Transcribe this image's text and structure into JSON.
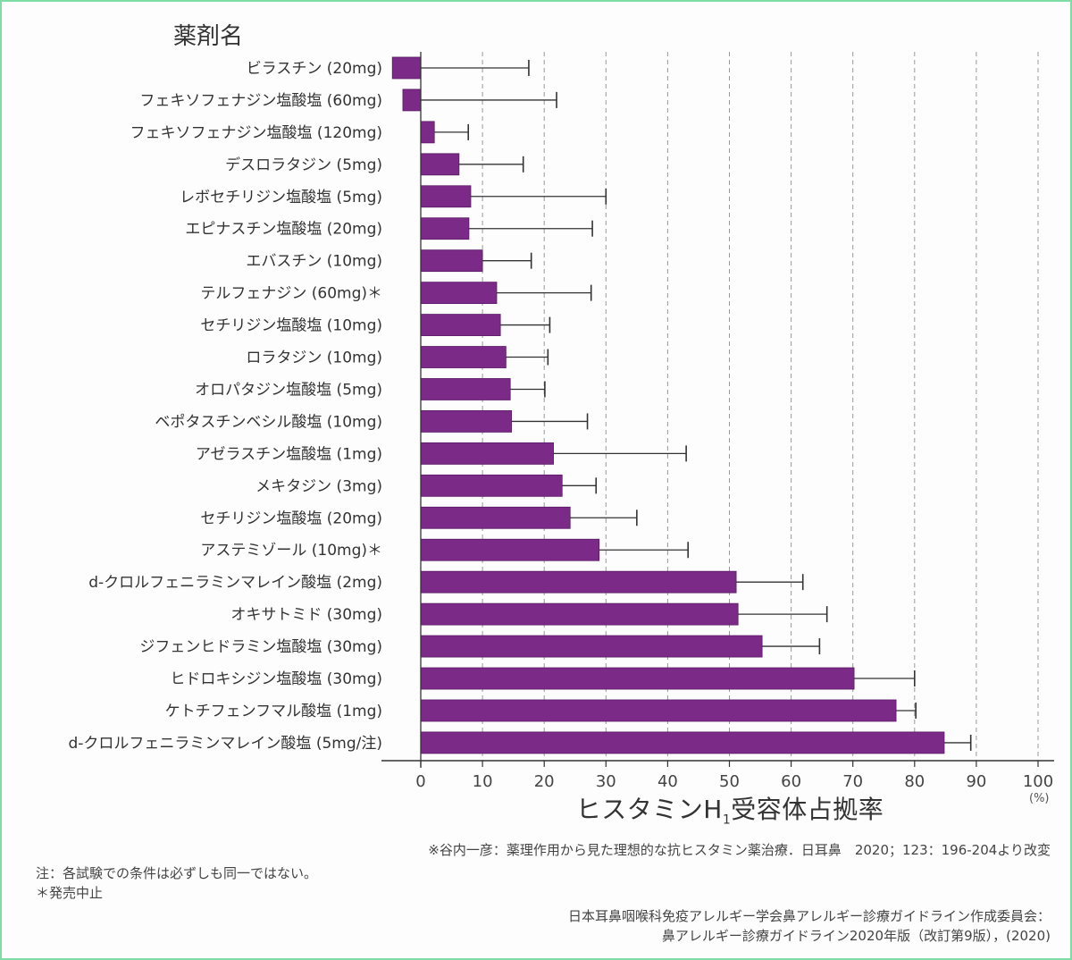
{
  "chart_data": {
    "type": "bar",
    "orientation": "horizontal",
    "title": "",
    "ylabel": "薬剤名",
    "xlabel": "ヒスタミンH1受容体占拠率",
    "xlabel_main": "ヒスタミンH",
    "xlabel_sub": "1",
    "xlabel_rest": "受容体占拠率",
    "x_unit": "(%)",
    "xlim": [
      -5,
      100
    ],
    "xticks": [
      0,
      10,
      20,
      30,
      40,
      50,
      60,
      70,
      80,
      90,
      100
    ],
    "grid": "vertical dashed",
    "bar_color": "#7b2a87",
    "categories": [
      "ビラスチン (20mg)",
      "フェキソフェナジン塩酸塩 (60mg)",
      "フェキソフェナジン塩酸塩 (120mg)",
      "デスロラタジン (5mg)",
      "レボセチリジン塩酸塩 (5mg)",
      "エピナスチン塩酸塩 (20mg)",
      "エバスチン (10mg)",
      "テルフェナジン (60mg)＊",
      "セチリジン塩酸塩 (10mg)",
      "ロラタジン (10mg)",
      "オロパタジン塩酸塩 (5mg)",
      "ベポタスチンベシル酸塩 (10mg)",
      "アゼラスチン塩酸塩 (1mg)",
      "メキタジン (3mg)",
      "セチリジン塩酸塩 (20mg)",
      "アステミゾール (10mg)＊",
      "d-クロルフェニラミンマレイン酸塩 (2mg)",
      "オキサトミド (30mg)",
      "ジフェンヒドラミン塩酸塩 (30mg)",
      "ヒドロキシジン塩酸塩 (30mg)",
      "ケトチフェンフマル酸塩 (1mg)",
      "d-クロルフェニラミンマレイン酸塩 (5mg/注)"
    ],
    "values": [
      -4.6,
      -2.9,
      2.2,
      6.2,
      8.1,
      7.8,
      10.0,
      12.3,
      12.9,
      13.8,
      14.5,
      14.7,
      21.5,
      22.9,
      24.2,
      28.9,
      51.1,
      51.4,
      55.3,
      70.2,
      77.0,
      84.8
    ],
    "error_upper": [
      17.5,
      22.0,
      7.7,
      16.6,
      30.0,
      27.8,
      17.9,
      27.6,
      20.9,
      20.6,
      20.1,
      27.0,
      43.0,
      28.4,
      35.0,
      43.3,
      61.9,
      65.8,
      64.6,
      80.0,
      80.2,
      89.1
    ]
  },
  "notes": {
    "source_ref": "※谷内一彦：薬理作用から見た理想的な抗ヒスタミン薬治療．日耳鼻　2020；123：196-204より改変",
    "note1": "注：各試験での条件は必ずしも同一ではない。",
    "note2": "＊発売中止",
    "citation_line1": "日本耳鼻咽喉科免疫アレルギー学会鼻アレルギー診療ガイドライン作成委員会：",
    "citation_line2": "鼻アレルギー診療ガイドライン2020年版（改訂第9版），(2020)"
  }
}
